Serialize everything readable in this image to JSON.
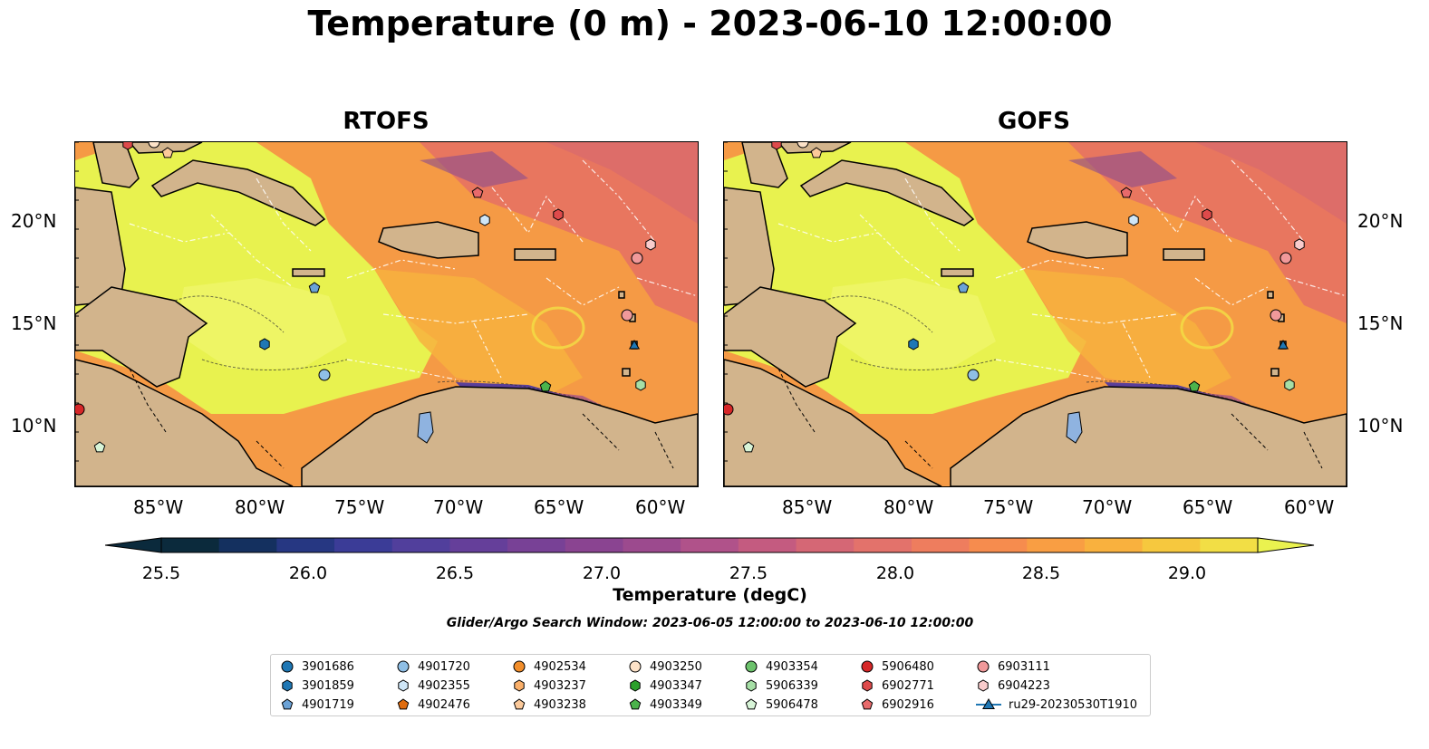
{
  "title": "Temperature (0 m) - 2023-06-10 12:00:00",
  "panels": [
    {
      "title": "RTOFS"
    },
    {
      "title": "GOFS"
    }
  ],
  "axes": {
    "lon_labels": [
      "85°W",
      "80°W",
      "75°W",
      "70°W",
      "65°W",
      "60°W"
    ],
    "lat_labels": [
      "20°N",
      "15°N",
      "10°N"
    ]
  },
  "colorbar": {
    "title": "Temperature (degC)",
    "ticks": [
      "25.5",
      "26.0",
      "26.5",
      "27.0",
      "27.5",
      "28.0",
      "28.5",
      "29.0"
    ],
    "colors": [
      "#0b2a3c",
      "#14305f",
      "#263782",
      "#3b3c97",
      "#513f9c",
      "#653f9a",
      "#784196",
      "#8a4491",
      "#9c4a8e",
      "#b0528a",
      "#c45b80",
      "#d56775",
      "#e3726b",
      "#ee7d5e",
      "#f68c4e",
      "#f99e43",
      "#f9b13e",
      "#f6c83e",
      "#f2de45",
      "#eaf24f"
    ]
  },
  "search_window": "Glider/Argo Search Window: 2023-06-05 12:00:00 to 2023-06-10 12:00:00",
  "legend": [
    {
      "label": "3901686",
      "marker": "circle",
      "color": "#1f77b4"
    },
    {
      "label": "3901859",
      "marker": "hexagon",
      "color": "#1f77b4"
    },
    {
      "label": "4901719",
      "marker": "pentagon",
      "color": "#6ba2d6"
    },
    {
      "label": "4901720",
      "marker": "circle",
      "color": "#8fbfe6"
    },
    {
      "label": "4902355",
      "marker": "hexagon",
      "color": "#cfe6f7"
    },
    {
      "label": "4902476",
      "marker": "pentagon",
      "color": "#e06c0e"
    },
    {
      "label": "4902534",
      "marker": "circle",
      "color": "#f28e2b"
    },
    {
      "label": "4903237",
      "marker": "hexagon",
      "color": "#fbb06a"
    },
    {
      "label": "4903238",
      "marker": "pentagon",
      "color": "#fbc99a"
    },
    {
      "label": "4903250",
      "marker": "circle",
      "color": "#fde2c8"
    },
    {
      "label": "4903347",
      "marker": "hexagon",
      "color": "#2ca02c"
    },
    {
      "label": "4903349",
      "marker": "pentagon",
      "color": "#4cb34c"
    },
    {
      "label": "4903354",
      "marker": "circle",
      "color": "#6cc26c"
    },
    {
      "label": "5906339",
      "marker": "hexagon",
      "color": "#a6dfa6"
    },
    {
      "label": "5906478",
      "marker": "pentagon",
      "color": "#d8f5d8"
    },
    {
      "label": "5906480",
      "marker": "circle",
      "color": "#d62728"
    },
    {
      "label": "6902771",
      "marker": "hexagon",
      "color": "#de4a4b"
    },
    {
      "label": "6902916",
      "marker": "pentagon",
      "color": "#e86a6b"
    },
    {
      "label": "6903111",
      "marker": "circle",
      "color": "#f0999a"
    },
    {
      "label": "6904223",
      "marker": "hexagon",
      "color": "#f9cccc"
    },
    {
      "label": "ru29-20230530T1910",
      "marker": "triangle",
      "color": "#1f77b4"
    }
  ]
}
